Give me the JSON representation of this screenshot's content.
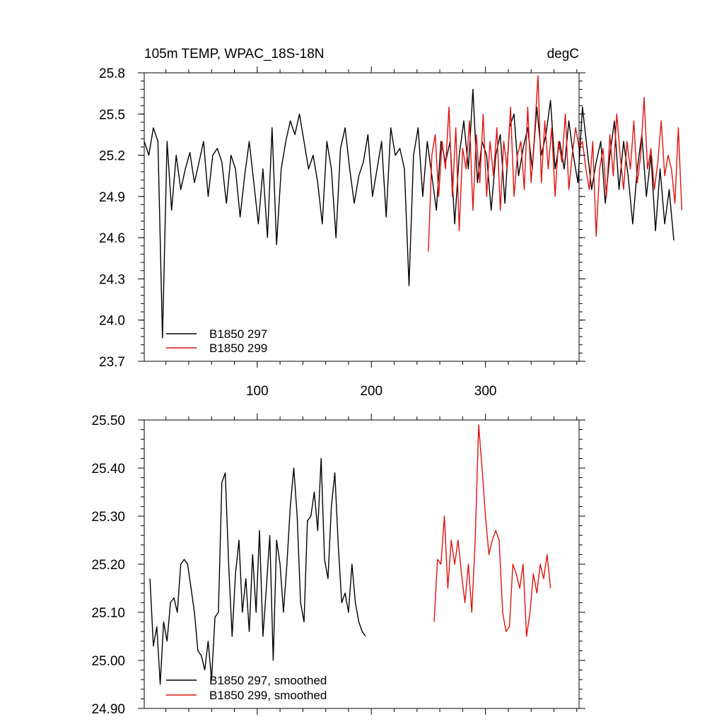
{
  "chart_data": [
    {
      "type": "line",
      "title": "105m TEMP, WPAC_18S-18N",
      "units": "degC",
      "xlabel": "",
      "ylabel": "",
      "xlim": [
        1,
        382
      ],
      "ylim": [
        23.7,
        25.8
      ],
      "xticks": [
        100,
        200,
        300
      ],
      "yticks": [
        23.7,
        24.0,
        24.3,
        24.6,
        24.9,
        25.2,
        25.5,
        25.8
      ],
      "ytick_labels": [
        "23.7",
        "24.0",
        "24.3",
        "24.6",
        "24.9",
        "25.2",
        "25.5",
        "25.8"
      ],
      "grid": false,
      "legend_position": "bottom-left",
      "series": [
        {
          "name": "B1850 297",
          "color": "#000000",
          "x_start": 1,
          "x_step": 4,
          "values": [
            25.3,
            25.2,
            25.4,
            25.3,
            23.87,
            25.3,
            24.8,
            25.2,
            24.95,
            25.1,
            25.22,
            25.0,
            25.15,
            25.3,
            24.9,
            25.2,
            25.25,
            25.15,
            24.85,
            25.2,
            25.1,
            24.75,
            25.05,
            25.3,
            25.0,
            24.7,
            25.1,
            24.6,
            25.4,
            24.55,
            25.1,
            25.3,
            25.45,
            25.35,
            25.5,
            25.3,
            25.1,
            25.2,
            25.0,
            24.7,
            25.3,
            25.1,
            24.6,
            25.25,
            25.4,
            25.1,
            24.85,
            25.05,
            25.15,
            25.35,
            24.9,
            25.1,
            25.3,
            24.75,
            25.4,
            25.2,
            25.25,
            25.1,
            24.25,
            25.2,
            25.4,
            24.9,
            25.3,
            25.05,
            24.8,
            25.3,
            25.15,
            25.3,
            24.7,
            25.2,
            25.45,
            25.1,
            25.68,
            25.0,
            25.3,
            25.2,
            24.8,
            25.2,
            25.35,
            24.85,
            25.4,
            25.5,
            25.05,
            25.25,
            25.4,
            25.1,
            25.55,
            25.2,
            25.35,
            25.6,
            25.1,
            25.3,
            25.1,
            25.45,
            25.2,
            25.0,
            25.55,
            25.25,
            24.95,
            25.15,
            25.3,
            24.85,
            25.2,
            25.45,
            24.95,
            25.3,
            25.05,
            24.7,
            25.1,
            25.35,
            24.9,
            25.2,
            24.65,
            25.1,
            24.7,
            24.95,
            24.58
          ]
        },
        {
          "name": "B1850 299",
          "color": "#e0120e",
          "x_start": 250,
          "x_step": 3,
          "values": [
            24.5,
            25.2,
            25.35,
            24.9,
            25.3,
            25.1,
            25.55,
            24.9,
            25.4,
            24.65,
            25.25,
            25.1,
            25.45,
            24.8,
            25.35,
            25.0,
            25.5,
            24.9,
            25.3,
            25.05,
            25.4,
            24.8,
            25.3,
            25.1,
            25.55,
            24.9,
            25.2,
            25.3,
            24.95,
            25.55,
            25.0,
            25.35,
            25.78,
            25.0,
            25.45,
            25.1,
            25.4,
            24.9,
            25.3,
            25.15,
            25.5,
            24.95,
            25.2,
            25.4,
            25.25,
            25.3,
            25.1,
            24.95,
            25.3,
            24.61,
            25.1,
            25.25,
            24.9,
            25.35,
            25.05,
            25.5,
            25.2,
            24.95,
            25.3,
            25.1,
            25.45,
            25.0,
            25.2,
            25.62,
            25.1,
            25.25,
            24.95,
            25.15,
            25.45,
            25.05,
            25.2,
            25.1,
            24.85,
            25.4,
            24.8
          ]
        }
      ]
    },
    {
      "type": "line",
      "title": "",
      "xlabel": "",
      "ylabel": "",
      "xlim": [
        1,
        382
      ],
      "ylim": [
        24.9,
        25.5
      ],
      "xticks": [
        100,
        200,
        300
      ],
      "yticks": [
        24.9,
        25.0,
        25.1,
        25.2,
        25.3,
        25.4,
        25.5
      ],
      "ytick_labels": [
        "24.90",
        "25.00",
        "25.10",
        "25.20",
        "25.30",
        "25.40",
        "25.50"
      ],
      "grid": false,
      "legend_position": "bottom-left",
      "series": [
        {
          "name": "B1850 297, smoothed",
          "color": "#000000",
          "x_start": 6,
          "x_step": 3,
          "values": [
            25.17,
            25.03,
            25.07,
            24.95,
            25.08,
            25.04,
            25.12,
            25.13,
            25.1,
            25.2,
            25.21,
            25.2,
            25.15,
            25.1,
            25.02,
            25.01,
            24.98,
            25.04,
            24.96,
            25.09,
            25.1,
            25.37,
            25.39,
            25.2,
            25.05,
            25.18,
            25.25,
            25.1,
            25.17,
            25.06,
            25.22,
            25.1,
            25.27,
            25.05,
            25.15,
            25.26,
            25.0,
            25.25,
            25.2,
            25.1,
            25.2,
            25.32,
            25.4,
            25.3,
            25.12,
            25.08,
            25.29,
            25.3,
            25.35,
            25.27,
            25.42,
            25.21,
            25.17,
            25.32,
            25.39,
            25.24,
            25.12,
            25.14,
            25.1,
            25.2,
            25.12,
            25.08,
            25.06,
            25.05
          ]
        },
        {
          "name": "B1850 299, smoothed",
          "color": "#e0120e",
          "x_start": 255,
          "x_step": 3,
          "values": [
            25.08,
            25.21,
            25.2,
            25.3,
            25.15,
            25.25,
            25.2,
            25.25,
            25.18,
            25.12,
            25.2,
            25.1,
            25.25,
            25.49,
            25.4,
            25.3,
            25.22,
            25.25,
            25.27,
            25.25,
            25.1,
            25.06,
            25.07,
            25.2,
            25.18,
            25.15,
            25.2,
            25.05,
            25.1,
            25.18,
            25.14,
            25.2,
            25.17,
            25.22,
            25.15
          ]
        }
      ]
    }
  ]
}
